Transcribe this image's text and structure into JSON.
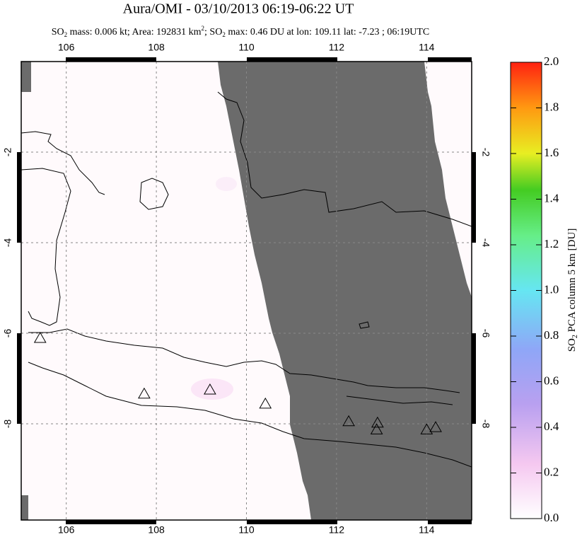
{
  "title": "Aura/OMI - 03/10/2013 06:19-06:22 UT",
  "subtitle": [
    "SO",
    "2",
    " mass: 0.006 kt; Area: 192831 km",
    "2",
    "; SO",
    "2",
    " max: 0.46 DU at lon: 109.11 lat: -7.23 ; 06:19UTC"
  ],
  "map": {
    "xlim": [
      105,
      115
    ],
    "ylim": [
      -10.125,
      0
    ],
    "xticks": [
      106,
      108,
      110,
      112,
      114
    ],
    "yticks": [
      -2,
      -4,
      -6,
      -8
    ],
    "grid": true,
    "volcanoes": {
      "lon": [
        105.42,
        107.73,
        109.19,
        110.42,
        112.27,
        112.91,
        112.89,
        114.0,
        114.2
      ],
      "lat": [
        -6.11,
        -7.34,
        -7.25,
        -7.56,
        -7.95,
        -7.98,
        -8.13,
        -8.13,
        -8.08
      ]
    }
  },
  "colorbar": {
    "label": [
      "SO",
      "2",
      " PCA column 5 km [DU]"
    ],
    "lim": [
      0,
      2
    ],
    "ticks": [
      {
        "value": 0,
        "label": "0.0"
      },
      {
        "value": 0.2,
        "label": "0.2"
      },
      {
        "value": 0.4,
        "label": "0.4"
      },
      {
        "value": 0.6,
        "label": "0.6"
      },
      {
        "value": 0.8,
        "label": "0.8"
      },
      {
        "value": 1,
        "label": "1.0"
      },
      {
        "value": 1.2,
        "label": "1.2"
      },
      {
        "value": 1.4,
        "label": "1.4"
      },
      {
        "value": 1.6,
        "label": "1.6"
      },
      {
        "value": 1.8,
        "label": "1.8"
      },
      {
        "value": 2,
        "label": "2.0"
      }
    ]
  }
}
